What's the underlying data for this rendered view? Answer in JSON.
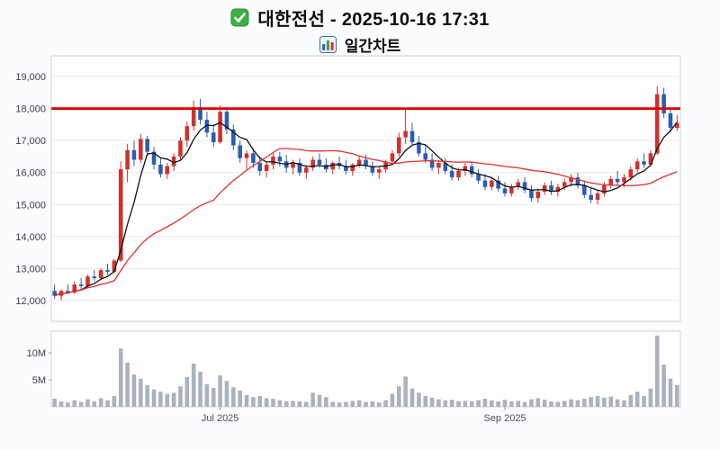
{
  "header": {
    "title": "대한전선 - 2025-10-16 17:31",
    "subtitle": "일간차트",
    "title_icon": "check-square-icon",
    "subtitle_icon": "bar-chart-icon"
  },
  "chart_data": {
    "type": "candlestick",
    "title": "대한전선 - 2025-10-16 17:31",
    "subtitle": "일간차트",
    "legend_position": "none",
    "grid": true,
    "colors": {
      "up": "#d2302c",
      "down": "#2a5db0",
      "volume": "#a9b2bd",
      "grid": "#e8eaec",
      "panel_border": "#ccd2d8",
      "reference": "#dd0000",
      "ma_fast": "#111111",
      "ma_slow": "#e03030"
    },
    "price_axis": {
      "range": [
        11350,
        19650
      ],
      "ticks": [
        {
          "value": 12000,
          "label": "12,000"
        },
        {
          "value": 13000,
          "label": "13,000"
        },
        {
          "value": 14000,
          "label": "14,000"
        },
        {
          "value": 15000,
          "label": "15,000"
        },
        {
          "value": 16000,
          "label": "16,000"
        },
        {
          "value": 17000,
          "label": "17,000"
        },
        {
          "value": 18000,
          "label": "18,000"
        },
        {
          "value": 19000,
          "label": "19,000"
        }
      ]
    },
    "volume_axis": {
      "range": [
        0,
        14
      ],
      "unit": "M",
      "ticks": [
        {
          "value": 5,
          "label": "5M"
        },
        {
          "value": 10,
          "label": "10M"
        }
      ]
    },
    "x_axis": {
      "ticks": [
        {
          "index": 25,
          "label": "Jul 2025"
        },
        {
          "index": 68,
          "label": "Sep 2025"
        }
      ]
    },
    "reference_line": {
      "price": 18000,
      "style": "horizontal-resistance"
    },
    "overlays": [
      {
        "name": "ma-fast-line",
        "window": 5
      },
      {
        "name": "ma-slow-line",
        "window": 25
      }
    ],
    "candles_format": [
      "open",
      "high",
      "low",
      "close",
      "volume_millions"
    ],
    "candles": [
      [
        12300,
        12500,
        12050,
        12150,
        1.5
      ],
      [
        12150,
        12350,
        12000,
        12300,
        1.0
      ],
      [
        12300,
        12500,
        12200,
        12250,
        0.8
      ],
      [
        12250,
        12600,
        12200,
        12500,
        1.2
      ],
      [
        12500,
        12700,
        12350,
        12450,
        0.9
      ],
      [
        12450,
        12800,
        12400,
        12750,
        1.4
      ],
      [
        12750,
        12950,
        12600,
        12700,
        1.0
      ],
      [
        12700,
        13000,
        12650,
        12950,
        1.6
      ],
      [
        12950,
        13150,
        12800,
        12900,
        1.2
      ],
      [
        12900,
        13300,
        12850,
        13250,
        2.0
      ],
      [
        13250,
        16350,
        13200,
        16100,
        10.8
      ],
      [
        16100,
        16900,
        15700,
        16700,
        8.2
      ],
      [
        16700,
        17000,
        16200,
        16400,
        6.0
      ],
      [
        16400,
        17200,
        16300,
        17050,
        5.2
      ],
      [
        17050,
        17150,
        16500,
        16650,
        4.0
      ],
      [
        16650,
        16800,
        16100,
        16250,
        3.2
      ],
      [
        16250,
        16450,
        15850,
        15950,
        2.8
      ],
      [
        15950,
        16300,
        15800,
        16200,
        2.4
      ],
      [
        16200,
        16600,
        16050,
        16500,
        2.6
      ],
      [
        16500,
        17100,
        16400,
        17000,
        3.8
      ],
      [
        17000,
        17600,
        16800,
        17450,
        5.5
      ],
      [
        17450,
        18250,
        17300,
        18050,
        8.0
      ],
      [
        18050,
        18300,
        17500,
        17650,
        6.5
      ],
      [
        17650,
        17900,
        17100,
        17250,
        4.2
      ],
      [
        17250,
        17500,
        16800,
        16950,
        3.5
      ],
      [
        16950,
        18100,
        16900,
        17900,
        5.8
      ],
      [
        17900,
        18050,
        17200,
        17350,
        4.8
      ],
      [
        17350,
        17500,
        16700,
        16850,
        3.6
      ],
      [
        16850,
        17000,
        16300,
        16450,
        3.0
      ],
      [
        16450,
        16700,
        16100,
        16600,
        2.2
      ],
      [
        16600,
        16750,
        16150,
        16300,
        1.8
      ],
      [
        16300,
        16500,
        15900,
        16050,
        2.0
      ],
      [
        16050,
        16350,
        15850,
        16250,
        1.6
      ],
      [
        16250,
        16600,
        16100,
        16500,
        1.5
      ],
      [
        16500,
        16650,
        16200,
        16350,
        1.2
      ],
      [
        16350,
        16550,
        16000,
        16150,
        1.0
      ],
      [
        16150,
        16400,
        15950,
        16300,
        1.1
      ],
      [
        16300,
        16450,
        15900,
        16000,
        1.0
      ],
      [
        16000,
        16250,
        15800,
        16150,
        0.9
      ],
      [
        16150,
        16500,
        16050,
        16400,
        2.6
      ],
      [
        16400,
        16600,
        16150,
        16250,
        2.2
      ],
      [
        16250,
        16450,
        16000,
        16100,
        1.8
      ],
      [
        16100,
        16350,
        15950,
        16300,
        0.9
      ],
      [
        16300,
        16500,
        16100,
        16200,
        0.8
      ],
      [
        16200,
        16400,
        15950,
        16050,
        0.9
      ],
      [
        16050,
        16300,
        15900,
        16250,
        1.1
      ],
      [
        16250,
        16500,
        16150,
        16400,
        1.2
      ],
      [
        16400,
        16550,
        16100,
        16200,
        0.9
      ],
      [
        16200,
        16350,
        15900,
        16000,
        1.0
      ],
      [
        16000,
        16200,
        15800,
        16100,
        0.8
      ],
      [
        16100,
        16400,
        16000,
        16350,
        1.2
      ],
      [
        16350,
        16700,
        16250,
        16600,
        2.4
      ],
      [
        16600,
        17250,
        16500,
        17100,
        3.8
      ],
      [
        17100,
        18000,
        16900,
        17300,
        5.6
      ],
      [
        17300,
        17550,
        16850,
        16950,
        3.4
      ],
      [
        16950,
        17150,
        16500,
        16600,
        2.6
      ],
      [
        16600,
        16850,
        16300,
        16400,
        2.0
      ],
      [
        16400,
        16600,
        16050,
        16150,
        1.7
      ],
      [
        16150,
        16400,
        15950,
        16300,
        1.4
      ],
      [
        16300,
        16450,
        15950,
        16050,
        1.2
      ],
      [
        16050,
        16250,
        15750,
        15850,
        1.3
      ],
      [
        15850,
        16150,
        15750,
        16050,
        1.0
      ],
      [
        16050,
        16300,
        15900,
        16200,
        1.1
      ],
      [
        16200,
        16350,
        15850,
        15950,
        1.0
      ],
      [
        15950,
        16100,
        15650,
        15750,
        1.2
      ],
      [
        15750,
        15950,
        15450,
        15550,
        1.5
      ],
      [
        15550,
        15850,
        15450,
        15750,
        1.2
      ],
      [
        15750,
        15900,
        15400,
        15500,
        1.0
      ],
      [
        15500,
        15700,
        15250,
        15350,
        1.3
      ],
      [
        15350,
        15650,
        15250,
        15550,
        1.0
      ],
      [
        15550,
        15800,
        15450,
        15700,
        1.1
      ],
      [
        15700,
        15850,
        15350,
        15450,
        0.9
      ],
      [
        15450,
        15600,
        15100,
        15200,
        1.4
      ],
      [
        15200,
        15500,
        15050,
        15400,
        1.6
      ],
      [
        15400,
        15700,
        15300,
        15600,
        1.3
      ],
      [
        15600,
        15750,
        15300,
        15400,
        1.0
      ],
      [
        15400,
        15650,
        15250,
        15550,
        0.9
      ],
      [
        15550,
        15800,
        15450,
        15700,
        1.1
      ],
      [
        15700,
        15950,
        15550,
        15850,
        1.4
      ],
      [
        15850,
        16000,
        15500,
        15600,
        1.2
      ],
      [
        15600,
        15750,
        15200,
        15300,
        1.5
      ],
      [
        15300,
        15550,
        15050,
        15150,
        1.8
      ],
      [
        15150,
        15450,
        15000,
        15350,
        2.0
      ],
      [
        15350,
        15700,
        15250,
        15600,
        1.7
      ],
      [
        15600,
        15900,
        15500,
        15800,
        1.9
      ],
      [
        15800,
        16050,
        15600,
        15700,
        1.4
      ],
      [
        15700,
        15950,
        15550,
        15850,
        1.2
      ],
      [
        15850,
        16200,
        15750,
        16100,
        2.2
      ],
      [
        16100,
        16450,
        16000,
        16350,
        2.8
      ],
      [
        16350,
        16600,
        16150,
        16250,
        2.0
      ],
      [
        16250,
        16700,
        16200,
        16600,
        3.4
      ],
      [
        16600,
        18700,
        16550,
        18450,
        13.2
      ],
      [
        18450,
        18650,
        17700,
        17850,
        7.8
      ],
      [
        17850,
        18000,
        17250,
        17400,
        5.2
      ],
      [
        17400,
        17800,
        17300,
        17550,
        4.0
      ]
    ]
  }
}
